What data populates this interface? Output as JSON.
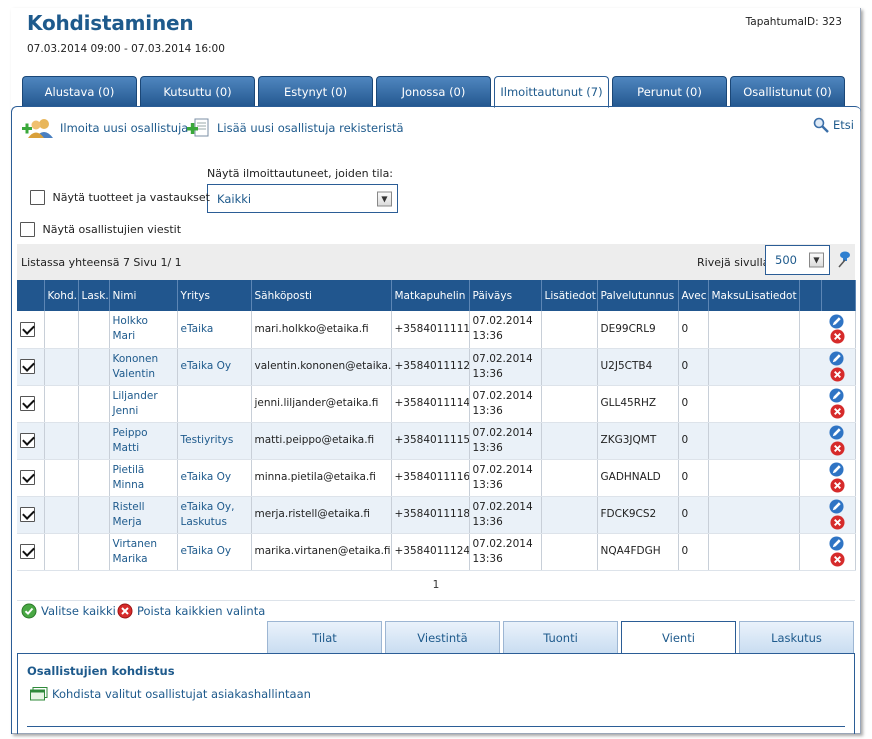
{
  "header": {
    "title": "Kohdistaminen",
    "dates": "07.03.2014 09:00 - 07.03.2014 16:00",
    "event_id": "TapahtumaID: 323"
  },
  "top_tabs": [
    {
      "label": "Alustava (0)",
      "active": false
    },
    {
      "label": "Kutsuttu (0)",
      "active": false
    },
    {
      "label": "Estynyt (0)",
      "active": false
    },
    {
      "label": "Jonossa (0)",
      "active": false
    },
    {
      "label": "Ilmoittautunut (7)",
      "active": true
    },
    {
      "label": "Perunut (0)",
      "active": false
    },
    {
      "label": "Osallistunut (0)",
      "active": false
    }
  ],
  "toolbar": {
    "add_participant": "Ilmoita uusi osallistuja",
    "add_from_registry": "Lisää uusi osallistuja rekisteristä",
    "search": "Etsi"
  },
  "filters": {
    "show_products_label": "Näytä tuotteet ja vastaukset",
    "show_messages_label": "Näytä osallistujien viestit",
    "status_label": "Näytä ilmoittautuneet, joiden tila:",
    "status_value": "Kaikki"
  },
  "listinfo": {
    "summary": "Listassa yhteensä 7 Sivu 1/ 1",
    "rows_per_page_label": "Rivejä sivulla",
    "rows_per_page_value": "500"
  },
  "table": {
    "columns": [
      "",
      "Kohd.",
      "Lask.",
      "Nimi",
      "Yritys",
      "Sähköposti",
      "Matkapuhelin",
      "Päiväys",
      "Lisätiedot",
      "Palvelutunnus",
      "Avec",
      "MaksuLisatiedot",
      "",
      ""
    ],
    "rows": [
      {
        "checked": true,
        "name": "Holkko Mari",
        "company": "eTaika",
        "email": "mari.holkko@etaika.fi",
        "phone": "+3584011111",
        "date": "07.02.2014 13:36",
        "code": "DE99CRL9",
        "avec": "0"
      },
      {
        "checked": true,
        "name": "Kononen Valentin",
        "company": "eTaika Oy",
        "email": "valentin.kononen@etaika.fi",
        "phone": "+3584011112",
        "date": "07.02.2014 13:36",
        "code": "U2J5CTB4",
        "avec": "0"
      },
      {
        "checked": true,
        "name": "Liljander Jenni",
        "company": "",
        "email": "jenni.liljander@etaika.fi",
        "phone": "+3584011114",
        "date": "07.02.2014 13:36",
        "code": "GLL45RHZ",
        "avec": "0"
      },
      {
        "checked": true,
        "name": "Peippo Matti",
        "company": "Testiyritys",
        "email": "matti.peippo@etaika.fi",
        "phone": "+3584011115",
        "date": "07.02.2014 13:36",
        "code": "ZKG3JQMT",
        "avec": "0"
      },
      {
        "checked": true,
        "name": "Pietilä Minna",
        "company": "eTaika Oy",
        "email": "minna.pietila@etaika.fi",
        "phone": "+3584011116",
        "date": "07.02.2014 13:36",
        "code": "GADHNALD",
        "avec": "0"
      },
      {
        "checked": true,
        "name": "Ristell Merja",
        "company": "eTaika Oy, Laskutus",
        "email": "merja.ristell@etaika.fi",
        "phone": "+3584011118",
        "date": "07.02.2014 13:36",
        "code": "FDCK9CS2",
        "avec": "0"
      },
      {
        "checked": true,
        "name": "Virtanen Marika",
        "company": "eTaika Oy",
        "email": "marika.virtanen@etaika.fi",
        "phone": "+3584011124",
        "date": "07.02.2014 13:36",
        "code": "NQA4FDGH",
        "avec": "0"
      }
    ],
    "pager": "1"
  },
  "selection": {
    "select_all": "Valitse kaikki",
    "clear_all": "Poista kaikkien valinta"
  },
  "bottom_tabs": [
    {
      "label": "Tilat",
      "active": false
    },
    {
      "label": "Viestintä",
      "active": false
    },
    {
      "label": "Tuonti",
      "active": false
    },
    {
      "label": "Vienti",
      "active": true
    },
    {
      "label": "Laskutus",
      "active": false
    }
  ],
  "bottom_panel": {
    "heading": "Osallistujien kohdistus",
    "action": "Kohdista valitut osallistujat asiakashallintaan"
  },
  "colors": {
    "accent": "#21568e",
    "link": "#1e5a8c",
    "delete": "#d62b2b"
  }
}
